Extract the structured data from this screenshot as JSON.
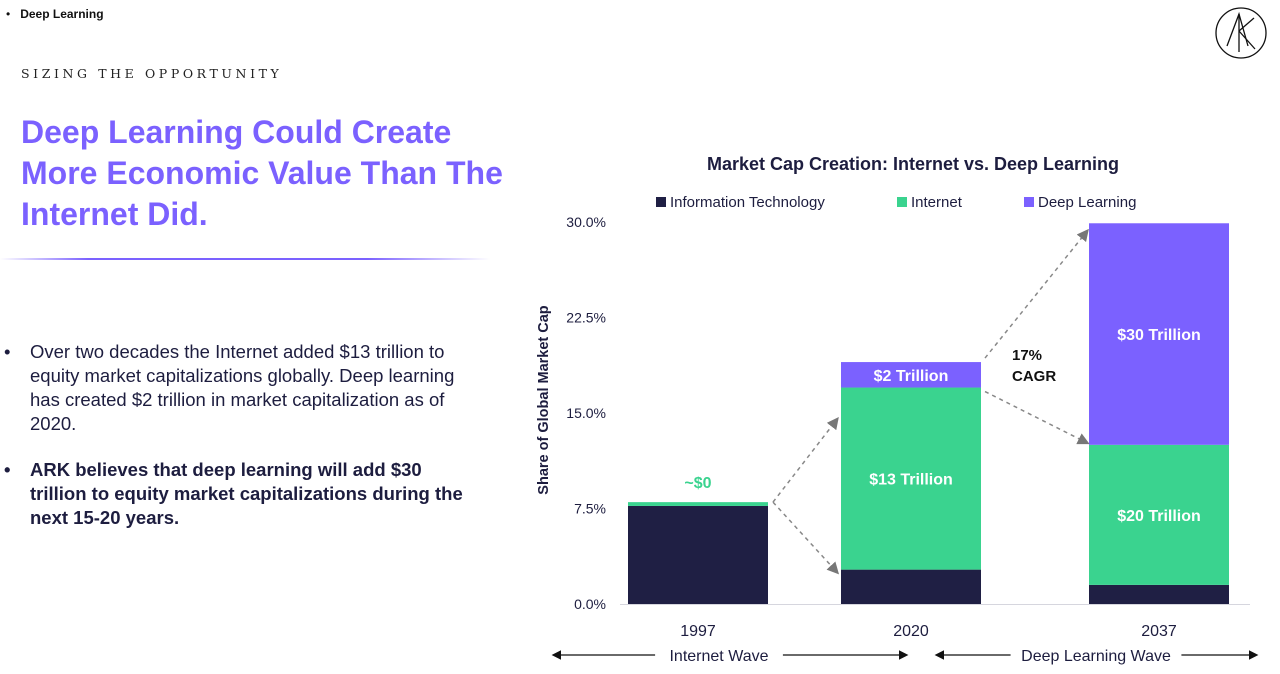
{
  "header": {
    "bullet": "•",
    "breadcrumb": "Deep Learning"
  },
  "slide": {
    "kicker": "SIZING THE OPPORTUNITY",
    "headline": "Deep Learning Could Create More Economic Value Than The Internet Did.",
    "bullet_mark": "•",
    "bullets": [
      "Over two decades the Internet added $13 trillion to equity market capitalizations globally. Deep learning has created $2 trillion in market capitalization as of 2020.",
      "ARK believes that deep learning will add $30 trillion to equity market capitalizations during the next 15-20 years."
    ],
    "logo_icon": "ark-logo-icon",
    "colors": {
      "accent": "#7b61ff",
      "navy": "#1f1f44",
      "green": "#3ad38f"
    }
  },
  "chart_data": {
    "type": "bar",
    "stacked": true,
    "title": "Market Cap Creation: Internet vs. Deep Learning",
    "ylabel": "Share of Global Market Cap",
    "xlabel": "",
    "ylim": [
      0,
      30
    ],
    "yticks": [
      "0.0%",
      "7.5%",
      "15.0%",
      "22.5%",
      "30.0%"
    ],
    "ytick_values": [
      0,
      7.5,
      15,
      22.5,
      30
    ],
    "categories": [
      "1997",
      "2020",
      "2037"
    ],
    "series": [
      {
        "name": "Information Technology",
        "color": "#1f1f44",
        "values": [
          7.7,
          2.7,
          1.5
        ],
        "labels": [
          "",
          "",
          ""
        ]
      },
      {
        "name": "Internet",
        "color": "#3ad38f",
        "values": [
          0.3,
          14.3,
          11.0
        ],
        "labels": [
          "~$0",
          "$13 Trillion",
          "$20 Trillion"
        ]
      },
      {
        "name": "Deep Learning",
        "color": "#7b61ff",
        "values": [
          0,
          2.0,
          17.4
        ],
        "labels": [
          "",
          "$2 Trillion",
          "$30 Trillion"
        ]
      }
    ],
    "legend_position": "top",
    "grid": false,
    "annotations": [
      {
        "text": "17%\nCAGR"
      }
    ],
    "waves": [
      "Internet Wave",
      "Deep Learning Wave"
    ]
  }
}
